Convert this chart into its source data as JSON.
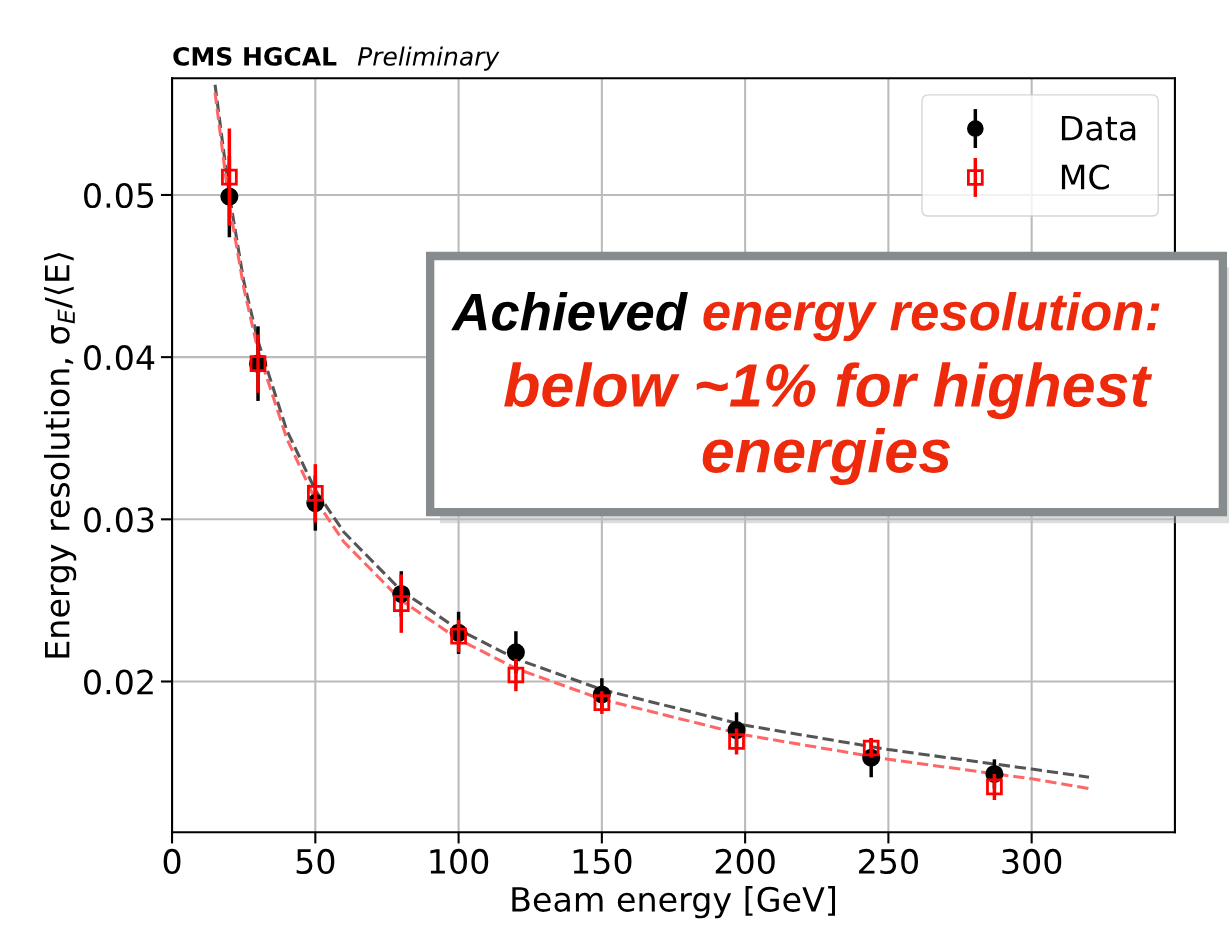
{
  "chart_data": {
    "type": "line",
    "title": "CMS HGCAL",
    "subtitle": "Preliminary",
    "xlabel": "Beam energy [GeV]",
    "ylabel": "Energy resolution, σ$_{E}$/⟨E⟩",
    "xlim": [
      0,
      350
    ],
    "xticks": [
      0,
      50,
      100,
      150,
      200,
      250,
      300
    ],
    "ylim": [
      0.0107,
      0.0572
    ],
    "yticks": [
      0.02,
      0.03,
      0.04,
      0.05
    ],
    "grid": true,
    "legend": "top right",
    "annotations": [
      "Achieved",
      "energy resolution:",
      "below ~1% for highest energies"
    ],
    "series": [
      {
        "name": "Data",
        "type": "scatter",
        "marker": "circle",
        "color": "#000000",
        "x": [
          20,
          30,
          50,
          80,
          100,
          120,
          150,
          197,
          244,
          287
        ],
        "values": [
          0.0499,
          0.0396,
          0.031,
          0.0254,
          0.023,
          0.0218,
          0.0192,
          0.017,
          0.0153,
          0.0143
        ],
        "errors": [
          0.0025,
          0.0023,
          0.0017,
          0.0014,
          0.0013,
          0.0013,
          0.001,
          0.0011,
          0.0012,
          0.0009
        ]
      },
      {
        "name": "MC",
        "type": "scatter",
        "marker": "square",
        "color": "#ff0000",
        "x": [
          20,
          30,
          50,
          80,
          100,
          120,
          150,
          197,
          244,
          287
        ],
        "values": [
          0.0511,
          0.0396,
          0.0316,
          0.0248,
          0.0228,
          0.0204,
          0.0187,
          0.0163,
          0.0159,
          0.0135
        ],
        "errors": [
          0.003,
          0.0018,
          0.0018,
          0.0018,
          0.001,
          0.001,
          0.0007,
          0.0008,
          0.0006,
          0.0008
        ]
      },
      {
        "line_style": "dashed",
        "color": "#555555",
        "x": [
          15,
          20,
          25,
          30,
          40,
          50,
          60,
          80,
          100,
          120,
          150,
          200,
          250,
          300,
          320
        ],
        "values": [
          0.0568,
          0.05,
          0.0447,
          0.041,
          0.0355,
          0.0318,
          0.0292,
          0.0256,
          0.0232,
          0.0214,
          0.0195,
          0.0173,
          0.0158,
          0.0146,
          0.0141
        ]
      },
      {
        "line_style": "dashed",
        "color": "#ff6666",
        "x": [
          15,
          20,
          25,
          30,
          40,
          50,
          60,
          80,
          100,
          120,
          150,
          200,
          250,
          300,
          320
        ],
        "values": [
          0.0563,
          0.0494,
          0.0443,
          0.0404,
          0.035,
          0.0312,
          0.0286,
          0.025,
          0.0226,
          0.0208,
          0.0189,
          0.0167,
          0.0152,
          0.014,
          0.0134
        ]
      }
    ]
  }
}
